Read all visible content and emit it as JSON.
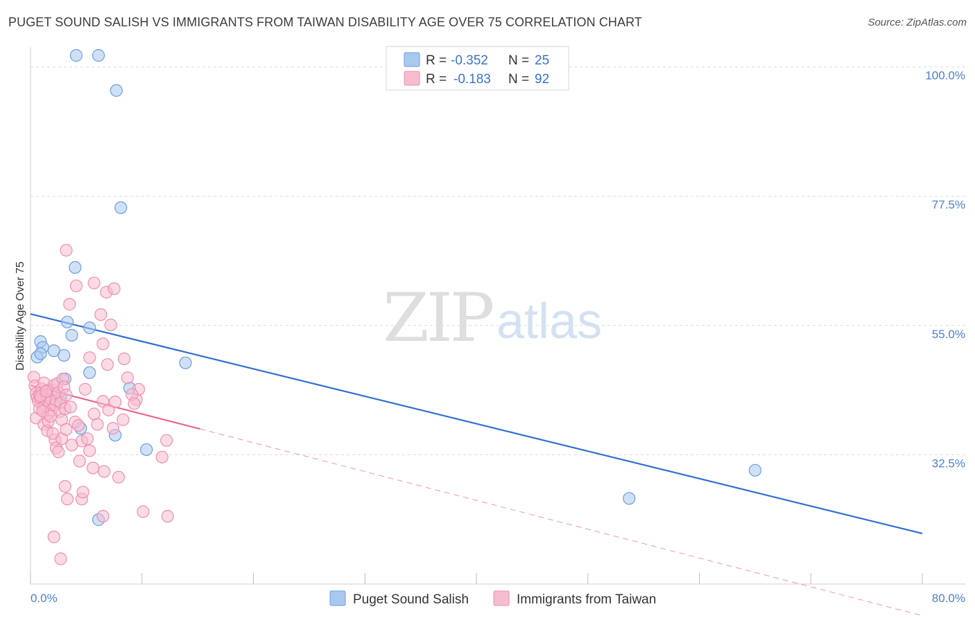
{
  "header": {
    "title": "PUGET SOUND SALISH VS IMMIGRANTS FROM TAIWAN DISABILITY AGE OVER 75 CORRELATION CHART",
    "source": "Source: ZipAtlas.com"
  },
  "watermark": {
    "zip": "ZIP",
    "atlas": "atlas"
  },
  "colors": {
    "blue_fill": "#a9c8ee",
    "blue_stroke": "#6b9de0",
    "blue_line": "#2f6fd0",
    "pink_fill": "#f6bcd0",
    "pink_stroke": "#ee8fb0",
    "pink_line": "#e8668f",
    "grid": "#dcdcdc",
    "axis_label": "#4a7fd0"
  },
  "stats_legend": [
    {
      "r_label": "R =",
      "r_value": "-0.352",
      "n_label": "N =",
      "n_value": "25",
      "series": "blue"
    },
    {
      "r_label": "R =",
      "r_value": "-0.183",
      "n_label": "N =",
      "n_value": "92",
      "series": "pink"
    }
  ],
  "chart_data": {
    "type": "scatter",
    "title": "PUGET SOUND SALISH VS IMMIGRANTS FROM TAIWAN DISABILITY AGE OVER 75 CORRELATION CHART",
    "xlabel": "",
    "ylabel": "Disability Age Over 75",
    "xlim": [
      0,
      80
    ],
    "ylim": [
      10,
      102
    ],
    "x_tick_labels": [
      {
        "value": 0,
        "label": "0.0%"
      },
      {
        "value": 80,
        "label": "80.0%"
      }
    ],
    "y_tick_labels": [
      {
        "value": 100,
        "label": "100.0%"
      },
      {
        "value": 77.5,
        "label": "77.5%"
      },
      {
        "value": 55,
        "label": "55.0%"
      },
      {
        "value": 32.5,
        "label": "32.5%"
      }
    ],
    "grid": true,
    "series": [
      {
        "name": "Puget Sound Salish",
        "color": "blue",
        "points": [
          [
            4.1,
            102.0
          ],
          [
            6.1,
            102.0
          ],
          [
            7.7,
            95.9
          ],
          [
            8.1,
            75.5
          ],
          [
            4.0,
            65.1
          ],
          [
            3.3,
            55.6
          ],
          [
            5.3,
            54.6
          ],
          [
            3.7,
            53.3
          ],
          [
            0.9,
            52.2
          ],
          [
            1.1,
            51.2
          ],
          [
            0.6,
            49.5
          ],
          [
            0.9,
            50.1
          ],
          [
            2.1,
            50.6
          ],
          [
            3.0,
            49.8
          ],
          [
            13.9,
            48.5
          ],
          [
            5.3,
            46.8
          ],
          [
            3.1,
            45.7
          ],
          [
            8.9,
            44.1
          ],
          [
            4.5,
            37.1
          ],
          [
            7.6,
            35.9
          ],
          [
            10.4,
            33.4
          ],
          [
            2.7,
            42.4
          ],
          [
            65.0,
            29.8
          ],
          [
            53.7,
            24.9
          ],
          [
            6.1,
            21.2
          ]
        ],
        "trend": {
          "x0": 0,
          "y0": 57.0,
          "x1": 80,
          "y1": 18.8
        }
      },
      {
        "name": "Immigrants from Taiwan",
        "color": "pink",
        "points": [
          [
            0.3,
            46.0
          ],
          [
            0.4,
            44.5
          ],
          [
            0.5,
            43.2
          ],
          [
            0.6,
            42.5
          ],
          [
            0.7,
            41.8
          ],
          [
            0.8,
            43.0
          ],
          [
            0.9,
            42.2
          ],
          [
            1.0,
            44.0
          ],
          [
            1.1,
            40.8
          ],
          [
            1.2,
            45.0
          ],
          [
            1.3,
            41.0
          ],
          [
            1.4,
            42.8
          ],
          [
            1.5,
            43.7
          ],
          [
            1.6,
            39.6
          ],
          [
            1.7,
            41.5
          ],
          [
            1.8,
            42.2
          ],
          [
            1.9,
            40.3
          ],
          [
            2.0,
            43.8
          ],
          [
            2.1,
            44.6
          ],
          [
            2.2,
            41.2
          ],
          [
            2.3,
            42.0
          ],
          [
            2.4,
            44.9
          ],
          [
            2.5,
            43.3
          ],
          [
            2.6,
            40.0
          ],
          [
            2.7,
            41.6
          ],
          [
            2.8,
            38.6
          ],
          [
            2.9,
            45.7
          ],
          [
            3.0,
            44.3
          ],
          [
            3.1,
            40.5
          ],
          [
            3.2,
            42.9
          ],
          [
            0.5,
            38.9
          ],
          [
            0.8,
            40.5
          ],
          [
            1.2,
            37.8
          ],
          [
            1.5,
            36.7
          ],
          [
            1.6,
            38.3
          ],
          [
            2.2,
            35.1
          ],
          [
            2.3,
            33.7
          ],
          [
            2.8,
            35.3
          ],
          [
            3.2,
            36.9
          ],
          [
            3.6,
            40.8
          ],
          [
            4.0,
            38.2
          ],
          [
            4.3,
            37.6
          ],
          [
            4.6,
            34.9
          ],
          [
            5.1,
            35.3
          ],
          [
            5.3,
            33.2
          ],
          [
            5.7,
            39.6
          ],
          [
            6.0,
            37.8
          ],
          [
            6.5,
            41.8
          ],
          [
            7.0,
            40.3
          ],
          [
            7.4,
            37.1
          ],
          [
            7.6,
            41.7
          ],
          [
            8.3,
            38.6
          ],
          [
            9.5,
            42.1
          ],
          [
            9.7,
            43.9
          ],
          [
            11.8,
            32.1
          ],
          [
            12.2,
            35.0
          ],
          [
            4.9,
            43.9
          ],
          [
            5.3,
            49.4
          ],
          [
            5.7,
            62.4
          ],
          [
            6.3,
            56.9
          ],
          [
            6.5,
            51.8
          ],
          [
            6.9,
            48.2
          ],
          [
            3.5,
            58.7
          ],
          [
            4.1,
            61.9
          ],
          [
            3.2,
            68.1
          ],
          [
            6.8,
            60.8
          ],
          [
            7.2,
            55.1
          ],
          [
            7.5,
            61.4
          ],
          [
            8.4,
            49.2
          ],
          [
            8.7,
            45.9
          ],
          [
            9.1,
            43.0
          ],
          [
            9.3,
            41.4
          ],
          [
            3.1,
            27.0
          ],
          [
            3.3,
            24.8
          ],
          [
            4.6,
            24.8
          ],
          [
            4.7,
            26.0
          ],
          [
            6.5,
            21.8
          ],
          [
            10.1,
            22.6
          ],
          [
            2.1,
            18.2
          ],
          [
            12.3,
            21.8
          ],
          [
            2.7,
            14.4
          ],
          [
            1.1,
            40.1
          ],
          [
            1.8,
            39.2
          ],
          [
            0.9,
            42.7
          ],
          [
            1.4,
            43.5
          ],
          [
            2.0,
            36.2
          ],
          [
            2.5,
            33.0
          ],
          [
            3.7,
            34.2
          ],
          [
            4.4,
            31.4
          ],
          [
            5.6,
            30.2
          ],
          [
            6.6,
            29.6
          ],
          [
            7.9,
            28.6
          ]
        ],
        "trend": {
          "x0": 0,
          "y0": 44.6,
          "x1": 15.2,
          "y1": 37.0
        },
        "trend_extension": {
          "x0": 15.2,
          "y0": 37.0,
          "x1": 80,
          "y1": 4.5
        }
      }
    ]
  },
  "bottom_legend": [
    {
      "label": "Puget Sound Salish",
      "color": "blue"
    },
    {
      "label": "Immigrants from Taiwan",
      "color": "pink"
    }
  ]
}
